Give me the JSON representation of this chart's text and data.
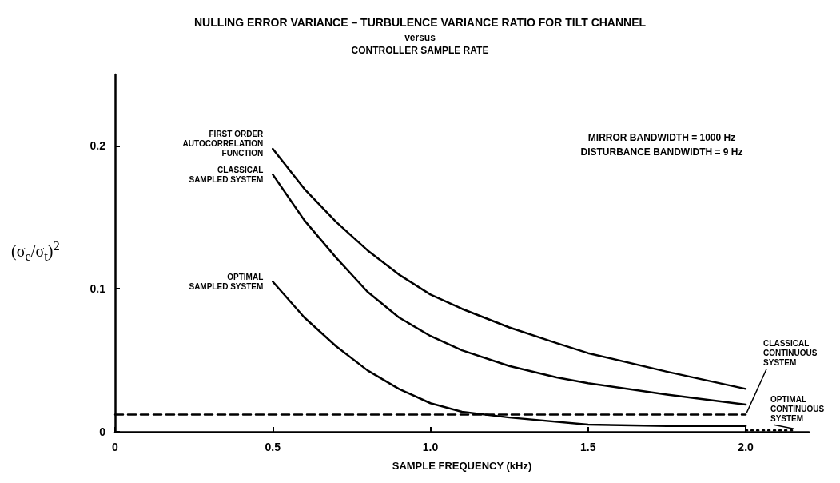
{
  "chart_data": {
    "type": "line",
    "title": "NULLING ERROR VARIANCE – TURBULENCE VARIANCE RATIO FOR TILT CHANNEL",
    "subtitle": "versus\nCONTROLLER SAMPLE RATE",
    "xlabel": "SAMPLE FREQUENCY (kHz)",
    "ylabel": "(σ$_{e}$/σ$_{t}$)$^{2}$",
    "xlim": [
      0,
      2.2
    ],
    "ylim": [
      0,
      0.25
    ],
    "xticks": [
      0,
      0.5,
      {
        "value": 1,
        "label": "1.0"
      },
      {
        "value": 1.5,
        "label": "1.5"
      },
      {
        "value": 2,
        "label": "2.0"
      }
    ],
    "yticks": [
      0,
      0.1,
      0.2
    ],
    "grid": false,
    "legend": false,
    "marker": "none",
    "series": [
      {
        "name": "FIRST ORDER\nAUTOCORRELATION\nFUNCTION",
        "color": "#000000",
        "line_style": "solid",
        "x": [
          0.5,
          0.6,
          0.7,
          0.8,
          0.9,
          1.0,
          1.1,
          1.25,
          1.4,
          1.5,
          1.75,
          2.0
        ],
        "values": [
          0.198,
          0.17,
          0.147,
          0.127,
          0.11,
          0.096,
          0.086,
          0.073,
          0.062,
          0.055,
          0.042,
          0.03
        ]
      },
      {
        "name": "CLASSICAL\nSAMPLED SYSTEM",
        "color": "#000000",
        "line_style": "solid",
        "x": [
          0.5,
          0.6,
          0.7,
          0.8,
          0.9,
          1.0,
          1.1,
          1.25,
          1.4,
          1.5,
          1.75,
          2.0
        ],
        "values": [
          0.18,
          0.148,
          0.122,
          0.098,
          0.08,
          0.067,
          0.057,
          0.046,
          0.038,
          0.034,
          0.026,
          0.019
        ]
      },
      {
        "name": "OPTIMAL\nSAMPLED SYSTEM",
        "color": "#000000",
        "line_style": "solid",
        "x": [
          0.5,
          0.6,
          0.7,
          0.8,
          0.9,
          1.0,
          1.1,
          1.25,
          1.5,
          1.75,
          2.0
        ],
        "values": [
          0.105,
          0.08,
          0.06,
          0.043,
          0.03,
          0.02,
          0.014,
          0.01,
          0.005,
          0.004,
          0.004
        ]
      },
      {
        "name": "CLASSICAL\nCONTINUOUS\nSYSTEM",
        "color": "#000000",
        "line_style": "dashed",
        "x": [
          0,
          2.0
        ],
        "values": [
          0.012,
          0.012
        ]
      },
      {
        "name": "OPTIMAL\nCONTINUOUS\nSYSTEM",
        "color": "#000000",
        "line_style": "dotted",
        "x": [
          2.0,
          2.15
        ],
        "values": [
          0.001,
          0.001
        ]
      }
    ],
    "annotations": [
      "MIRROR BANDWIDTH = 1000 Hz",
      "DISTURBANCE BANDWIDTH = 9 Hz"
    ]
  }
}
